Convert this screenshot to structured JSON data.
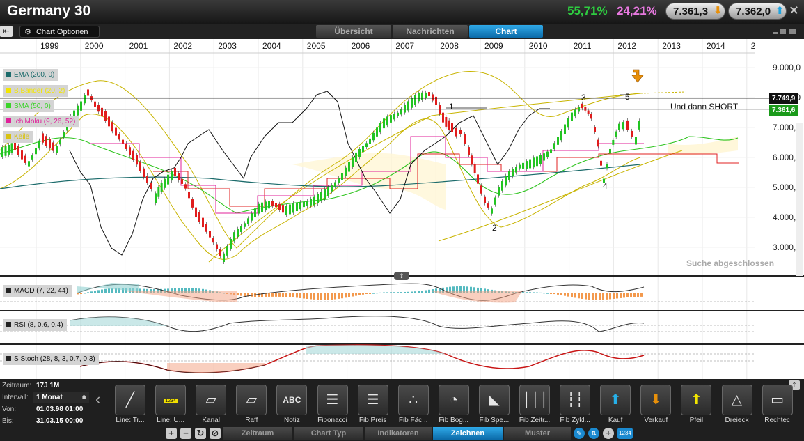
{
  "header": {
    "title": "Germany 30",
    "perf_1": "55,71%",
    "perf_2": "24,21%",
    "bid": "7.361,3",
    "ask": "7.362,0",
    "colors": {
      "green": "#2ecc40",
      "pink": "#e879e0",
      "orange": "#e8900a",
      "blue": "#1b8ad0"
    }
  },
  "toolbar": {
    "chart_options": "Chart Optionen",
    "tabs": [
      {
        "label": "Übersicht",
        "active": false
      },
      {
        "label": "Nachrichten",
        "active": false
      },
      {
        "label": "Chart",
        "active": true
      }
    ]
  },
  "chart": {
    "years": [
      "1999",
      "2000",
      "2001",
      "2002",
      "2003",
      "2004",
      "2005",
      "2006",
      "2007",
      "2008",
      "2009",
      "2010",
      "2011",
      "2012",
      "2013",
      "2014",
      "2"
    ],
    "y_axis": [
      "9.000,0",
      "8.000,0",
      "7.000,0",
      "6.000,0",
      "5.000,0",
      "4.000,0",
      "3.000,0"
    ],
    "legend": [
      {
        "label": "EMA (200, 0)",
        "color": "#1b6b6b"
      },
      {
        "label": "B.Bänder (20, 2)",
        "color": "#f3e600"
      },
      {
        "label": "SMA (50, 0)",
        "color": "#3bd42a"
      },
      {
        "label": "IchiMoku (9, 26, 52)",
        "color": "#e0209a"
      },
      {
        "label": "Keile",
        "color": "#d8c210"
      }
    ],
    "price_tag_upper": "7.749,9",
    "price_tag_current": "7.361,6",
    "annotation": "Und dann SHORT",
    "wave_labels": [
      "1",
      "2",
      "3",
      "4",
      "5"
    ],
    "status": "Suche abgeschlossen",
    "panes": [
      {
        "label": "MACD (7, 22, 44)"
      },
      {
        "label": "RSI (8, 0.6, 0.4)"
      },
      {
        "label": "S Stoch (28, 8, 3, 0.7, 0.3)"
      }
    ]
  },
  "info": {
    "zeitraum_label": "Zeitraum:",
    "zeitraum_value": "17J 1M",
    "intervall_label": "Intervall:",
    "intervall_value": "1 Monat",
    "von_label": "Von:",
    "von_value": "01.03.98 01:00",
    "bis_label": "Bis:",
    "bis_value": "31.03.15 00:00"
  },
  "tools": [
    {
      "label": "Line: Tr...",
      "icon": "trend-line-icon"
    },
    {
      "label": "Line: U...",
      "icon": "horizontal-line-icon",
      "badge": "1234"
    },
    {
      "label": "Kanal",
      "icon": "channel-icon"
    },
    {
      "label": "Raff",
      "icon": "raff-channel-icon"
    },
    {
      "label": "Notiz",
      "icon": "note-icon",
      "badge": "ABC"
    },
    {
      "label": "Fibonacci",
      "icon": "fibonacci-icon"
    },
    {
      "label": "Fib Preis",
      "icon": "fib-price-icon"
    },
    {
      "label": "Fib Fäc...",
      "icon": "fib-fan-icon"
    },
    {
      "label": "Fib Bog...",
      "icon": "fib-arc-icon"
    },
    {
      "label": "Fib Spe...",
      "icon": "fib-speed-icon"
    },
    {
      "label": "Fib Zeitr...",
      "icon": "fib-time-icon"
    },
    {
      "label": "Fib Zykl...",
      "icon": "fib-cycle-icon"
    },
    {
      "label": "Kauf",
      "icon": "buy-arrow-icon"
    },
    {
      "label": "Verkauf",
      "icon": "sell-arrow-icon"
    },
    {
      "label": "Pfeil",
      "icon": "arrow-icon"
    },
    {
      "label": "Dreieck",
      "icon": "triangle-icon"
    },
    {
      "label": "Rechtec",
      "icon": "rectangle-icon"
    }
  ],
  "bottom_tabs": [
    {
      "label": "Zeitraum",
      "active": false
    },
    {
      "label": "Chart Typ",
      "active": false
    },
    {
      "label": "Indikatoren",
      "active": false
    },
    {
      "label": "Zeichnen",
      "active": true
    },
    {
      "label": "Muster",
      "active": false
    }
  ],
  "bottom_badge": "1234"
}
